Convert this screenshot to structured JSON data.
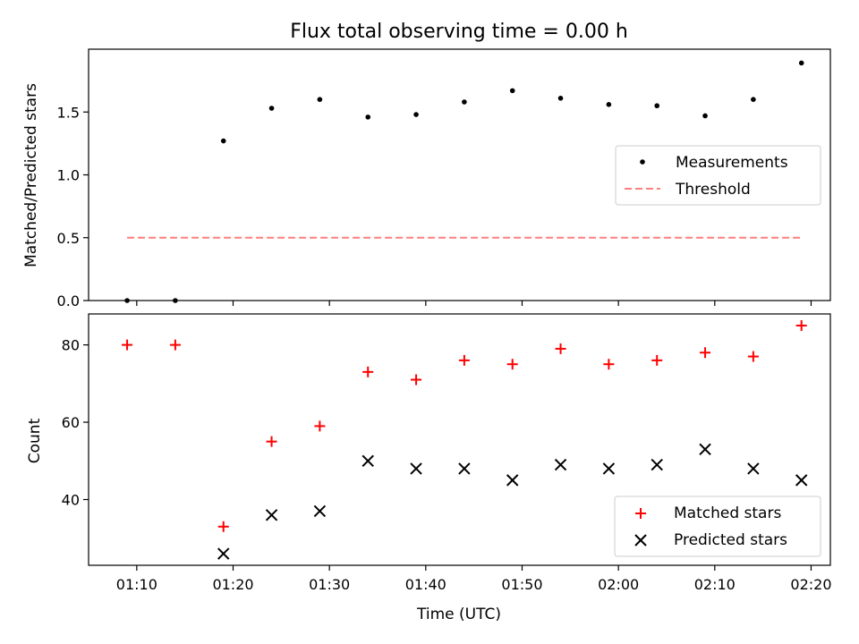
{
  "chart_data": [
    {
      "type": "scatter",
      "title": "Flux total observing time = 0.00 h",
      "xlabel": "",
      "ylabel": "Matched/Predicted stars",
      "ylim": [
        0,
        2.0
      ],
      "yticks": [
        "0.0",
        "0.5",
        "1.0",
        "1.5"
      ],
      "legend_placement": "center-right",
      "series": [
        {
          "name": "Measurements",
          "style": "dot",
          "color": "#000000",
          "x": [
            "01:09",
            "01:14",
            "01:19",
            "01:24",
            "01:29",
            "01:34",
            "01:39",
            "01:44",
            "01:49",
            "01:54",
            "01:59",
            "02:04",
            "02:09",
            "02:14",
            "02:19"
          ],
          "y": [
            0.0,
            0.0,
            1.27,
            1.53,
            1.6,
            1.46,
            1.48,
            1.58,
            1.67,
            1.61,
            1.56,
            1.55,
            1.47,
            1.6,
            1.89
          ]
        },
        {
          "name": "Threshold",
          "style": "dashed-line",
          "color": "#ff7f7f",
          "x": [
            "01:09",
            "02:19"
          ],
          "y": [
            0.5,
            0.5
          ]
        }
      ]
    },
    {
      "type": "scatter",
      "title": "",
      "xlabel": "Time (UTC)",
      "ylabel": "Count",
      "ylim": [
        23,
        88
      ],
      "yticks": [
        "40",
        "60",
        "80"
      ],
      "xticks": [
        "01:10",
        "01:20",
        "01:30",
        "01:40",
        "01:50",
        "02:00",
        "02:10",
        "02:20"
      ],
      "legend_placement": "lower-right",
      "series": [
        {
          "name": "Matched stars",
          "style": "plus",
          "color": "#ff0000",
          "x": [
            "01:09",
            "01:14",
            "01:19",
            "01:24",
            "01:29",
            "01:34",
            "01:39",
            "01:44",
            "01:49",
            "01:54",
            "01:59",
            "02:04",
            "02:09",
            "02:14",
            "02:19"
          ],
          "y": [
            80,
            80,
            33,
            55,
            59,
            73,
            71,
            76,
            75,
            79,
            75,
            76,
            78,
            77,
            85
          ]
        },
        {
          "name": "Predicted stars",
          "style": "x",
          "color": "#000000",
          "x": [
            "01:19",
            "01:24",
            "01:29",
            "01:34",
            "01:39",
            "01:44",
            "01:49",
            "01:54",
            "01:59",
            "02:04",
            "02:09",
            "02:14",
            "02:19"
          ],
          "y": [
            26,
            36,
            37,
            50,
            48,
            48,
            45,
            49,
            48,
            49,
            53,
            48,
            45
          ]
        }
      ]
    }
  ]
}
